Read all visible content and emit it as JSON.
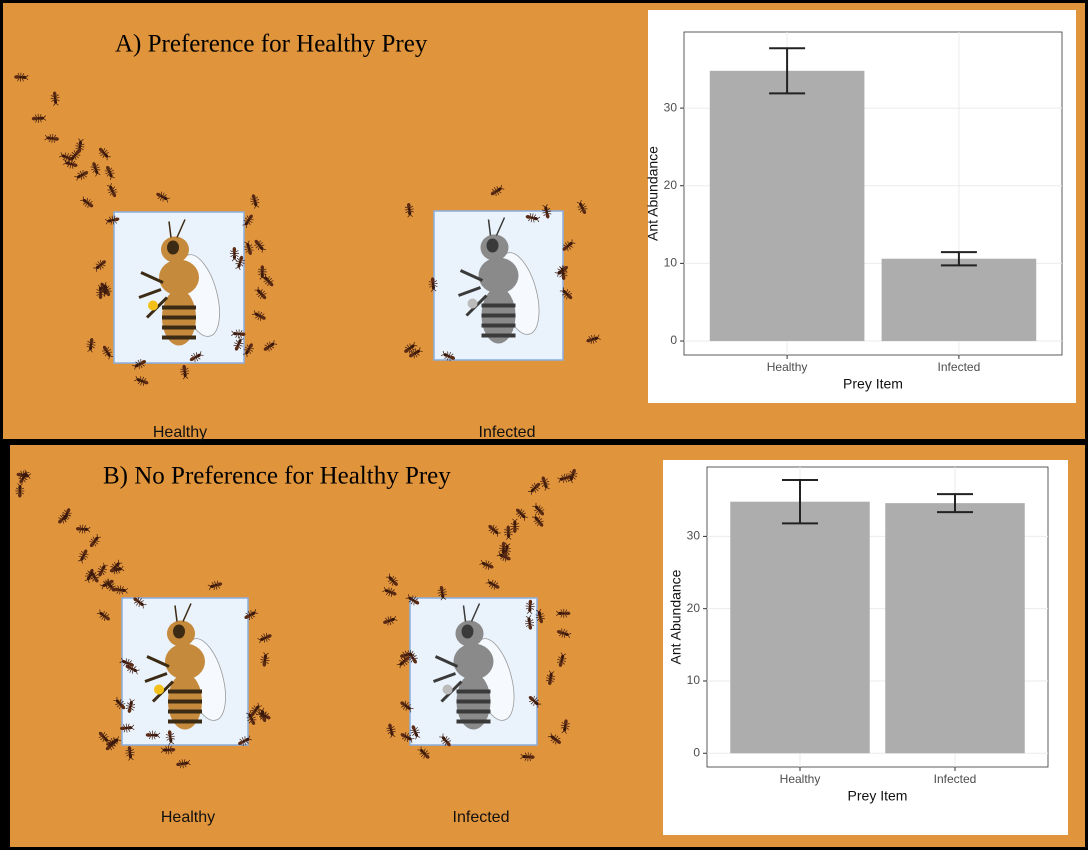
{
  "chart_data": [
    {
      "type": "bar",
      "title": "A) Preference for Healthy Prey",
      "illustration_labels": [
        "Healthy",
        "Infected"
      ],
      "x_label": "Prey Item",
      "y_label": "Ant Abundance",
      "categories": [
        "Healthy",
        "Infected"
      ],
      "values": [
        34.8,
        10.6
      ],
      "errors": [
        2.9,
        0.85
      ],
      "color": "#adadad",
      "ylim": [
        -1.8,
        39.8
      ],
      "yticks": [
        0,
        10,
        20,
        30
      ],
      "grid": true
    },
    {
      "type": "bar",
      "title": "B) No Preference for Healthy Prey",
      "illustration_labels": [
        "Healthy",
        "Infected"
      ],
      "x_label": "Prey Item",
      "y_label": "Ant Abundance",
      "categories": [
        "Healthy",
        "Infected"
      ],
      "values": [
        34.8,
        34.6
      ],
      "errors": [
        3.0,
        1.25
      ],
      "color": "#adadad",
      "ylim": [
        -1.9,
        39.6
      ],
      "yticks": [
        0,
        10,
        20,
        30
      ],
      "grid": true
    }
  ]
}
